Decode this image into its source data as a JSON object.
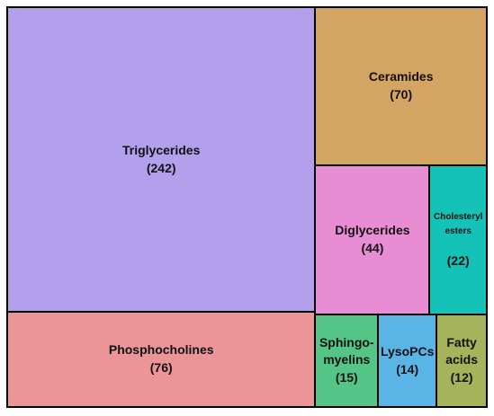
{
  "chart_data": {
    "type": "treemap",
    "categories": [
      "Triglycerides",
      "Phosphocholines",
      "Ceramides",
      "Diglycerides",
      "Cholesteryl\nesters",
      "Sphingo-\nmyelins",
      "LysoPCs",
      "Fatty\nacids"
    ],
    "values": [
      242,
      76,
      70,
      44,
      22,
      15,
      14,
      12
    ],
    "value_labels": [
      "(242)",
      "(76)",
      "(70)",
      "(44)",
      "(22)",
      "(15)",
      "(14)",
      "(12)"
    ],
    "colors": [
      "#b3a0ec",
      "#ec9598",
      "#d4a463",
      "#e88dd3",
      "#14c2b8",
      "#54c487",
      "#5ab4e6",
      "#a5b45a"
    ]
  }
}
